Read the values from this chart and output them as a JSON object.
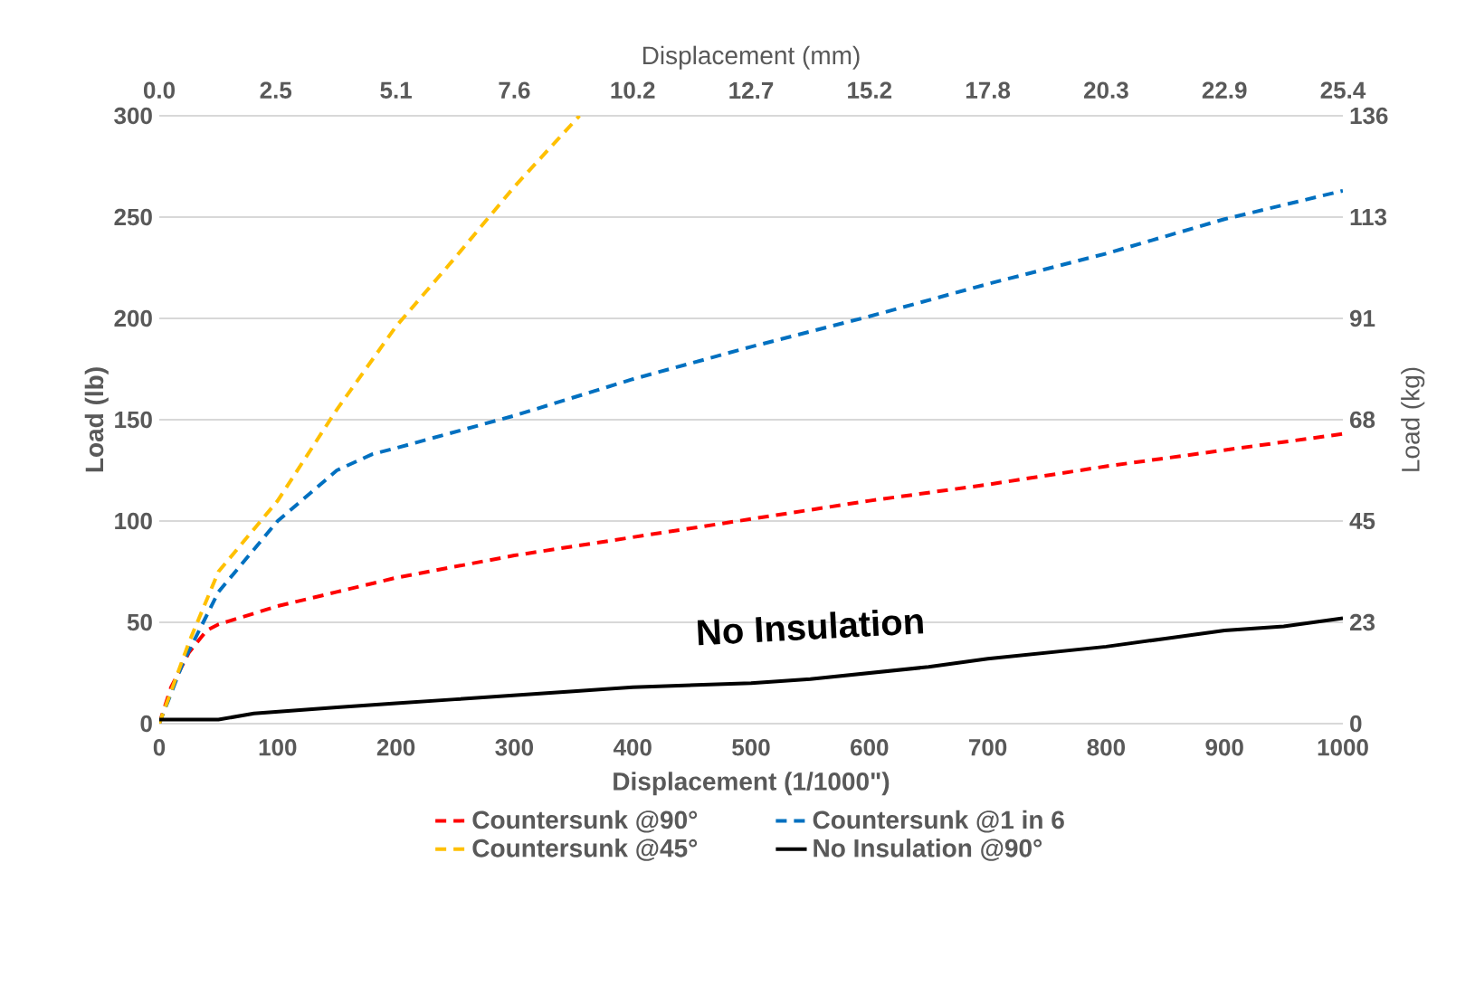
{
  "chart_data": {
    "type": "line",
    "xlabel": "Displacement (1/1000\")",
    "ylabel": "Load (lb)",
    "x2label": "Displacement (mm)",
    "y2label": "Load (kg)",
    "xlim": [
      0,
      1000
    ],
    "xticks": [
      0,
      100,
      200,
      300,
      400,
      500,
      600,
      700,
      800,
      900,
      1000
    ],
    "ylim": [
      0,
      300
    ],
    "yticks": [
      0,
      50,
      100,
      150,
      200,
      250,
      300
    ],
    "x2lim": [
      0,
      25.4
    ],
    "x2ticks": [
      {
        "value": 0,
        "label": "0.0"
      },
      2.5,
      {
        "value": 5.08,
        "label": "5.1"
      },
      {
        "value": 7.62,
        "label": "7.6"
      },
      {
        "value": 10.16,
        "label": "10.2"
      },
      12.7,
      {
        "value": 15.24,
        "label": "15.2"
      },
      {
        "value": 17.78,
        "label": "17.8"
      },
      {
        "value": 20.32,
        "label": "20.3"
      },
      {
        "value": 22.86,
        "label": "22.9"
      },
      25.4
    ],
    "y2lim": [
      0,
      136.08
    ],
    "y2ticks": [
      0,
      {
        "value": 22.68,
        "label": "23"
      },
      {
        "value": 45.36,
        "label": "45"
      },
      {
        "value": 68.04,
        "label": "68"
      },
      {
        "value": 90.72,
        "label": "91"
      },
      {
        "value": 113.4,
        "label": "113"
      },
      {
        "value": 136.08,
        "label": "136"
      }
    ],
    "grid": "y",
    "legend": "bottom",
    "annotations": [
      "No Insulation"
    ],
    "series": [
      {
        "name": "Countersunk @90°",
        "color": "#ff0000",
        "line_style": "dashed",
        "x": [
          0,
          10,
          25,
          40,
          50,
          100,
          150,
          200,
          300,
          400,
          500,
          600,
          700,
          800,
          900,
          1000
        ],
        "values": [
          0,
          18,
          35,
          46,
          49,
          58,
          65,
          72,
          83,
          92,
          101,
          110,
          118,
          127,
          135,
          143
        ]
      },
      {
        "name": "Countersunk @1 in 6",
        "color": "#0070c0",
        "line_style": "dashed",
        "x": [
          0,
          20,
          50,
          100,
          150,
          180,
          200,
          300,
          400,
          500,
          600,
          700,
          800,
          900,
          1000
        ],
        "values": [
          0,
          30,
          65,
          100,
          125,
          133,
          136,
          152,
          170,
          186,
          201,
          217,
          232,
          249,
          263
        ]
      },
      {
        "name": "Countersunk @45°",
        "color": "#ffc000",
        "line_style": "dashed",
        "x": [
          0,
          25,
          50,
          100,
          150,
          200,
          250,
          300,
          355
        ],
        "values": [
          0,
          40,
          75,
          110,
          155,
          196,
          230,
          265,
          300
        ]
      },
      {
        "name": "No Insulation @90°",
        "color": "#000000",
        "line_style": "solid",
        "x": [
          0,
          50,
          80,
          150,
          200,
          250,
          300,
          350,
          400,
          500,
          550,
          600,
          650,
          700,
          750,
          800,
          850,
          900,
          950,
          1000
        ],
        "values": [
          2,
          2,
          5,
          8,
          10,
          12,
          14,
          16,
          18,
          20,
          22,
          25,
          28,
          32,
          35,
          38,
          42,
          46,
          48,
          52
        ]
      }
    ]
  }
}
